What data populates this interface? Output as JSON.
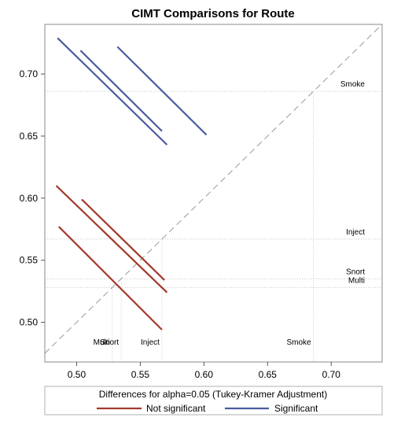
{
  "chart_data": {
    "type": "line",
    "title": "CIMT Comparisons for Route",
    "xlim": [
      0.475,
      0.74
    ],
    "ylim": [
      0.468,
      0.74
    ],
    "xticks": [
      0.5,
      0.55,
      0.6,
      0.65,
      0.7
    ],
    "yticks": [
      0.5,
      0.55,
      0.6,
      0.65,
      0.7
    ],
    "tick_labels": [
      "0.50",
      "0.55",
      "0.60",
      "0.65",
      "0.70"
    ],
    "diagonal": true,
    "groups": [
      {
        "name": "Multi",
        "mean": 0.528
      },
      {
        "name": "Snort",
        "mean": 0.535
      },
      {
        "name": "Inject",
        "mean": 0.567
      },
      {
        "name": "Smoke",
        "mean": 0.686
      }
    ],
    "comparisons": [
      {
        "x": [
          0.486,
          0.567
        ],
        "y": [
          0.577,
          0.494
        ],
        "significant": false
      },
      {
        "x": [
          0.484,
          0.571
        ],
        "y": [
          0.61,
          0.524
        ],
        "significant": false
      },
      {
        "x": [
          0.504,
          0.569
        ],
        "y": [
          0.599,
          0.534
        ],
        "significant": false
      },
      {
        "x": [
          0.485,
          0.571
        ],
        "y": [
          0.729,
          0.643
        ],
        "significant": true
      },
      {
        "x": [
          0.503,
          0.567
        ],
        "y": [
          0.719,
          0.654
        ],
        "significant": true
      },
      {
        "x": [
          0.532,
          0.602
        ],
        "y": [
          0.722,
          0.651
        ],
        "significant": true
      }
    ],
    "legend": {
      "title": "Differences for alpha=0.05 (Tukey-Kramer Adjustment)",
      "placement": "bottom",
      "items": [
        {
          "label": "Not significant",
          "color": "#a23a2c"
        },
        {
          "label": "Significant",
          "color": "#4a5c9e"
        }
      ]
    },
    "colors": {
      "not_significant": "#a23a2c",
      "significant": "#4a5c9e",
      "diagonal": "#9a9a9a",
      "reference": "#c8c8c8",
      "frame": "#8a8a8a"
    }
  }
}
